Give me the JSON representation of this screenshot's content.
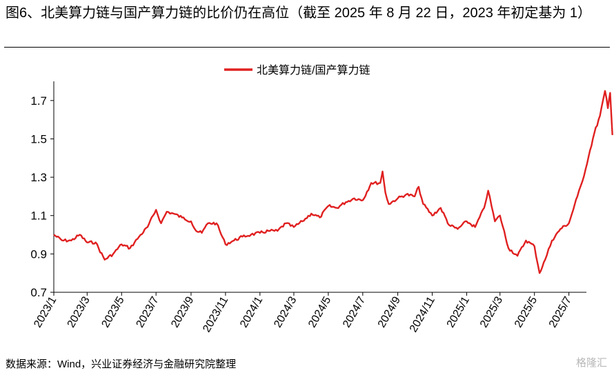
{
  "header": {
    "title": "图6、北美算力链与国产算力链的比价仍在高位（截至 2025 年 8 月 22 日，2023 年初定基为 1）"
  },
  "footer": {
    "source": "数据来源：Wind，兴业证券经济与金融研究院整理",
    "watermark": "格隆汇"
  },
  "colors": {
    "series": "#e02020",
    "axis": "#000000"
  },
  "chart_data": {
    "type": "line",
    "title": "",
    "xlabel": "",
    "ylabel": "",
    "ylim": [
      0.7,
      1.8
    ],
    "yticks": [
      0.7,
      0.9,
      1.1,
      1.3,
      1.5,
      1.7
    ],
    "ytick_labels": [
      "0.7",
      "0.9",
      "1.1",
      "1.3",
      "1.5",
      "1.7"
    ],
    "xticks": [
      "2023/1",
      "2023/3",
      "2023/5",
      "2023/7",
      "2023/9",
      "2023/11",
      "2024/1",
      "2024/3",
      "2024/5",
      "2024/7",
      "2024/9",
      "2024/11",
      "2025/1",
      "2025/3",
      "2025/5",
      "2025/7"
    ],
    "x_start": "2023/1",
    "x_end": "2025/8",
    "legend": {
      "position": "top-center"
    },
    "grid": false,
    "series": [
      {
        "name": "北美算力链/国产算力链",
        "color": "#e02020",
        "points": [
          [
            "2023-01-01",
            1.0
          ],
          [
            "2023-01-16",
            0.97
          ],
          [
            "2023-02-01",
            0.97
          ],
          [
            "2023-02-16",
            1.0
          ],
          [
            "2023-03-01",
            0.96
          ],
          [
            "2023-03-16",
            0.96
          ],
          [
            "2023-04-01",
            0.87
          ],
          [
            "2023-04-16",
            0.9
          ],
          [
            "2023-05-01",
            0.95
          ],
          [
            "2023-05-16",
            0.93
          ],
          [
            "2023-06-01",
            0.99
          ],
          [
            "2023-06-16",
            1.04
          ],
          [
            "2023-07-01",
            1.13
          ],
          [
            "2023-07-10",
            1.06
          ],
          [
            "2023-07-20",
            1.12
          ],
          [
            "2023-08-01",
            1.11
          ],
          [
            "2023-08-16",
            1.09
          ],
          [
            "2023-09-01",
            1.07
          ],
          [
            "2023-09-10",
            1.02
          ],
          [
            "2023-09-20",
            1.01
          ],
          [
            "2023-10-01",
            1.06
          ],
          [
            "2023-10-16",
            1.06
          ],
          [
            "2023-11-01",
            0.95
          ],
          [
            "2023-11-16",
            0.97
          ],
          [
            "2023-12-01",
            0.99
          ],
          [
            "2023-12-16",
            1.0
          ],
          [
            "2024-01-01",
            1.01
          ],
          [
            "2024-01-16",
            1.02
          ],
          [
            "2024-02-01",
            1.02
          ],
          [
            "2024-02-16",
            1.06
          ],
          [
            "2024-03-01",
            1.04
          ],
          [
            "2024-03-16",
            1.07
          ],
          [
            "2024-04-01",
            1.11
          ],
          [
            "2024-04-16",
            1.09
          ],
          [
            "2024-05-01",
            1.15
          ],
          [
            "2024-05-16",
            1.14
          ],
          [
            "2024-06-01",
            1.17
          ],
          [
            "2024-06-16",
            1.19
          ],
          [
            "2024-07-01",
            1.18
          ],
          [
            "2024-07-16",
            1.27
          ],
          [
            "2024-08-01",
            1.27
          ],
          [
            "2024-08-05",
            1.33
          ],
          [
            "2024-08-10",
            1.22
          ],
          [
            "2024-08-16",
            1.16
          ],
          [
            "2024-09-01",
            1.19
          ],
          [
            "2024-09-16",
            1.21
          ],
          [
            "2024-10-01",
            1.2
          ],
          [
            "2024-10-08",
            1.25
          ],
          [
            "2024-10-16",
            1.16
          ],
          [
            "2024-11-01",
            1.1
          ],
          [
            "2024-11-16",
            1.14
          ],
          [
            "2024-12-01",
            1.05
          ],
          [
            "2024-12-16",
            1.03
          ],
          [
            "2025-01-01",
            1.07
          ],
          [
            "2025-01-16",
            1.04
          ],
          [
            "2025-02-01",
            1.14
          ],
          [
            "2025-02-08",
            1.23
          ],
          [
            "2025-02-20",
            1.07
          ],
          [
            "2025-03-01",
            1.1
          ],
          [
            "2025-03-16",
            0.93
          ],
          [
            "2025-04-01",
            0.89
          ],
          [
            "2025-04-16",
            0.97
          ],
          [
            "2025-05-01",
            0.94
          ],
          [
            "2025-05-10",
            0.8
          ],
          [
            "2025-05-20",
            0.87
          ],
          [
            "2025-06-01",
            0.97
          ],
          [
            "2025-06-16",
            1.03
          ],
          [
            "2025-07-01",
            1.06
          ],
          [
            "2025-07-16",
            1.2
          ],
          [
            "2025-07-25",
            1.28
          ],
          [
            "2025-08-05",
            1.41
          ],
          [
            "2025-08-15",
            1.53
          ],
          [
            "2025-08-25",
            1.62
          ],
          [
            "2025-09-03",
            1.75
          ],
          [
            "2025-09-08",
            1.66
          ],
          [
            "2025-09-12",
            1.74
          ],
          [
            "2025-09-16",
            1.52
          ]
        ]
      }
    ]
  }
}
